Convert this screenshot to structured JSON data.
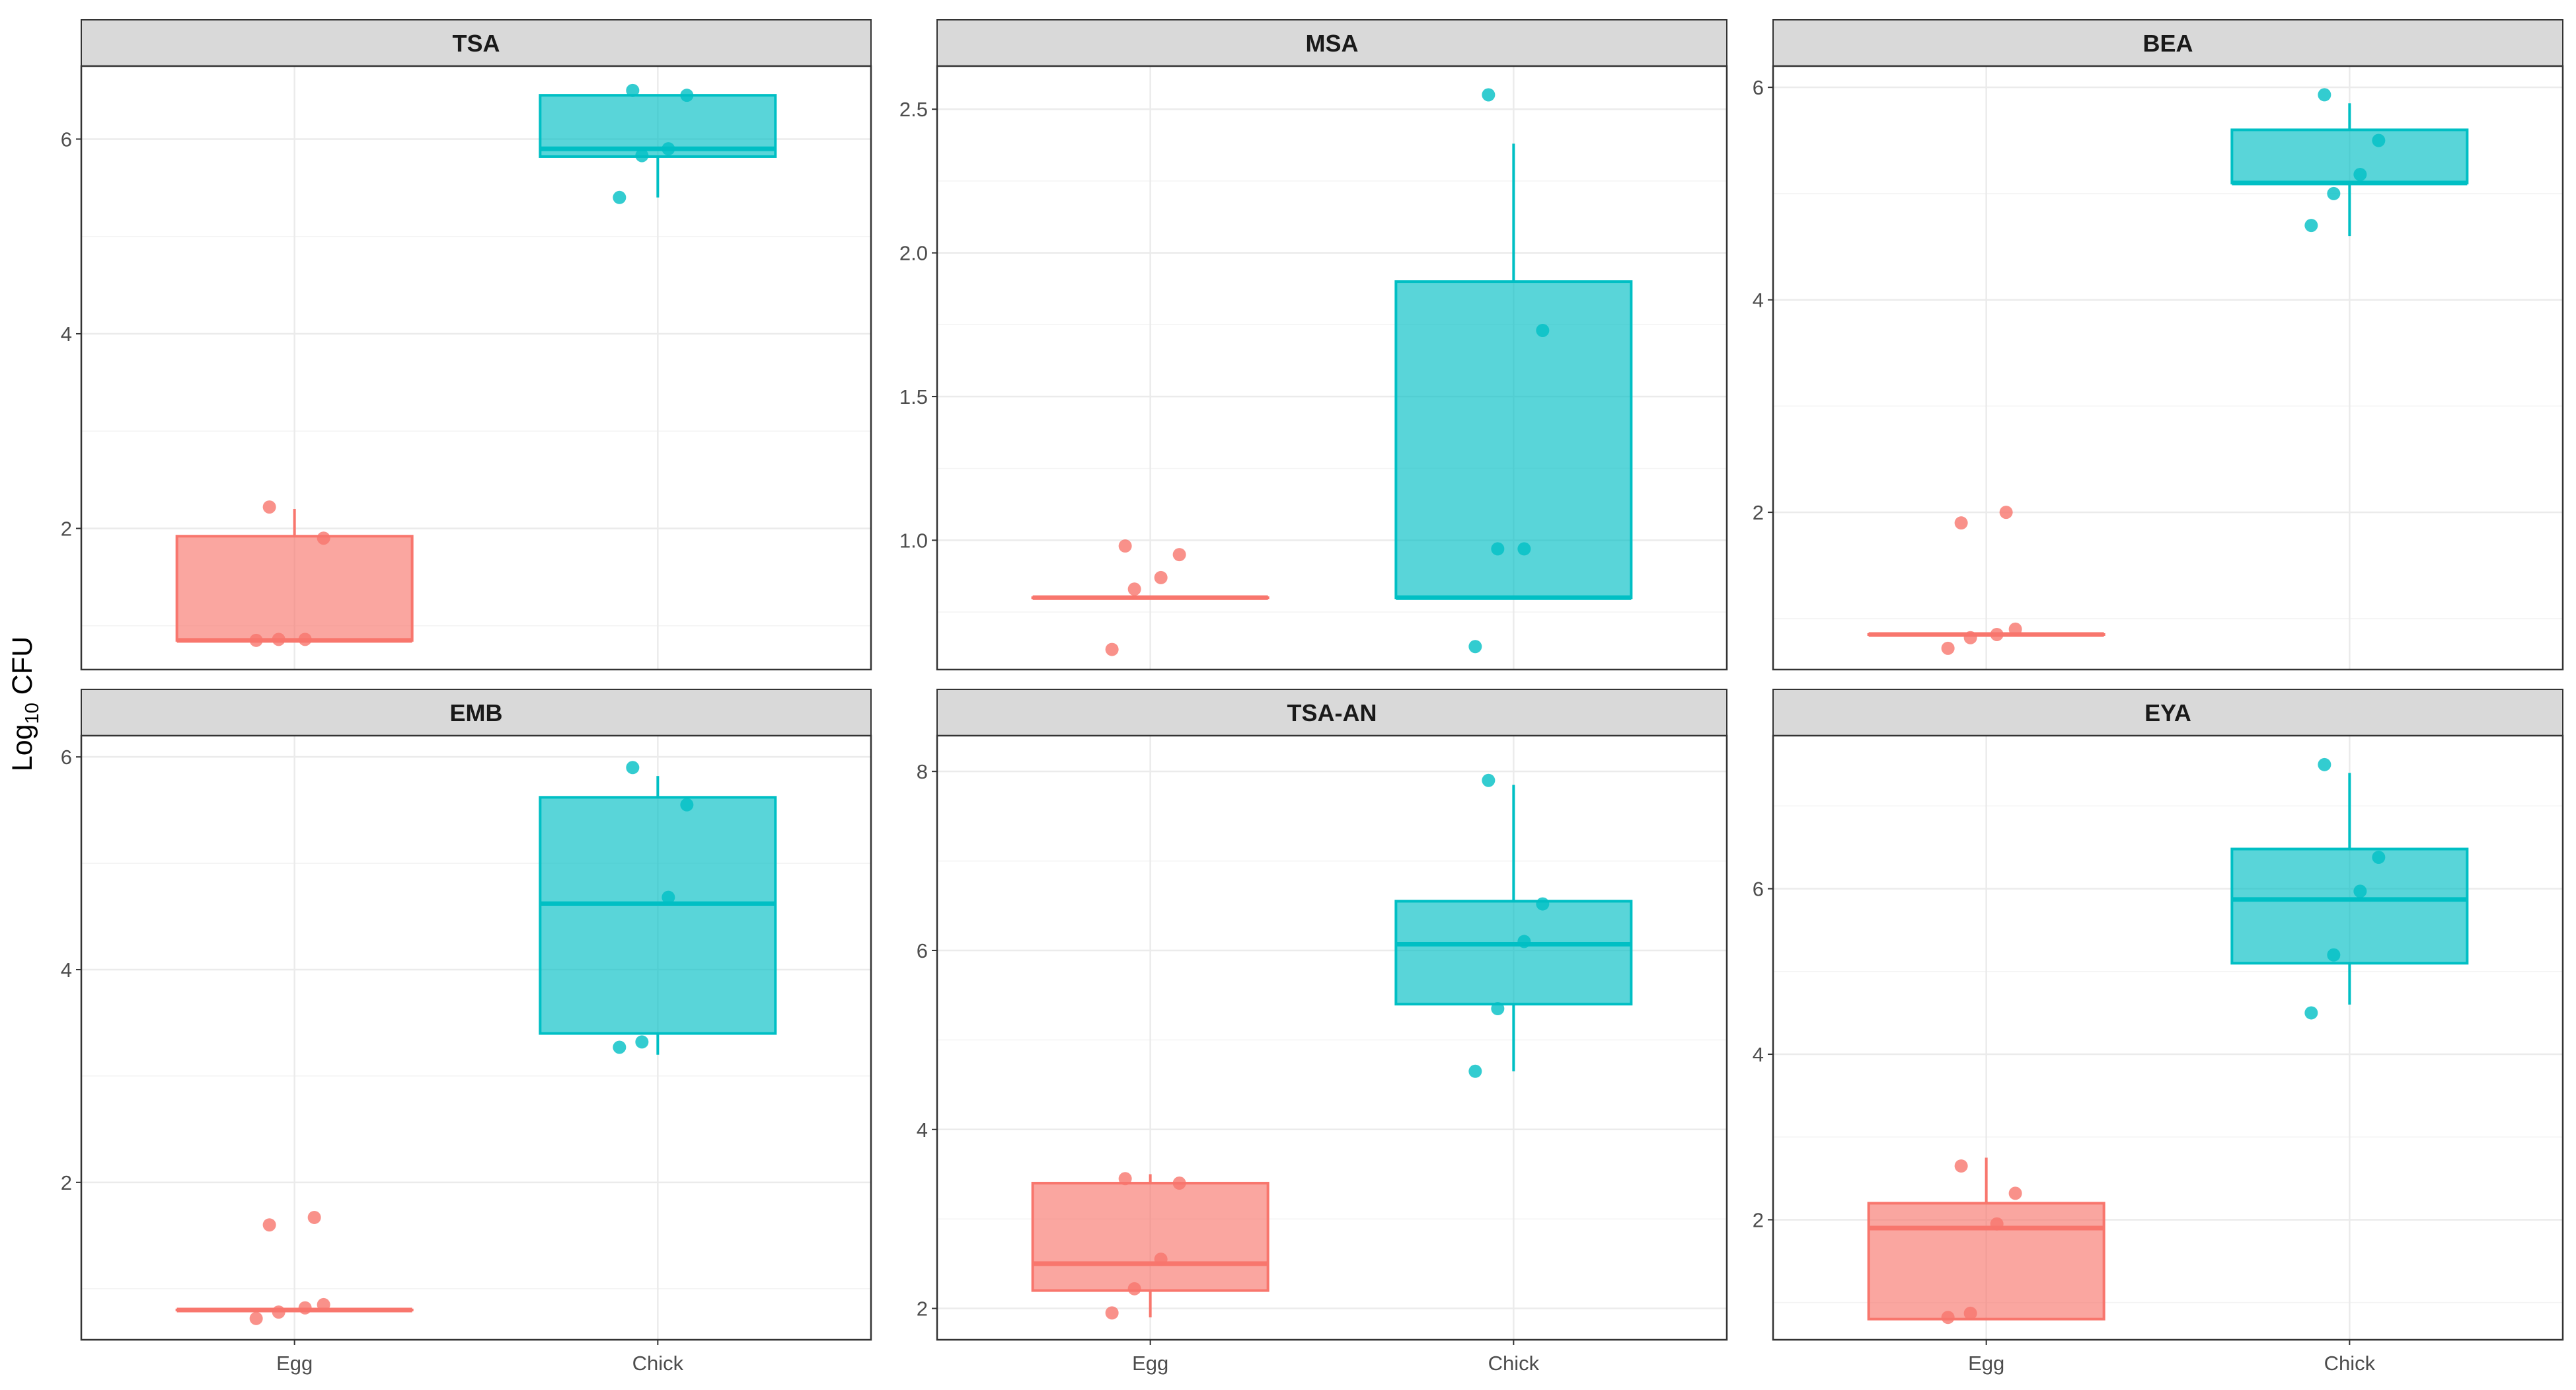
{
  "colors": {
    "egg": "#F8766D",
    "chick": "#00BFC4",
    "strip_fill": "#D9D9D9",
    "panel_border": "#333333",
    "grid_major": "#EBEBEB",
    "grid_minor": "#F3F3F3",
    "tick_text": "#4D4D4D"
  },
  "chart_data": {
    "type": "box",
    "ylabel": "Log10 CFU",
    "ylabel_parts": {
      "base": "Log",
      "subscript": "10",
      "rest": " CFU"
    },
    "categories": [
      "Egg",
      "Chick"
    ],
    "facets": [
      {
        "title": "TSA",
        "ylim": [
          0.55,
          6.75
        ],
        "yticks": [
          2,
          4,
          6
        ],
        "groups": [
          {
            "name": "Egg",
            "whisker_low": 0.85,
            "q1": 0.85,
            "median": 0.85,
            "q3": 1.92,
            "whisker_high": 2.2,
            "points": [
              0.85,
              0.86,
              0.86,
              1.9,
              2.22
            ]
          },
          {
            "name": "Chick",
            "whisker_low": 5.4,
            "q1": 5.82,
            "median": 5.9,
            "q3": 6.45,
            "whisker_high": 6.45,
            "points": [
              5.4,
              5.83,
              5.9,
              6.45,
              6.5
            ]
          }
        ]
      },
      {
        "title": "MSA",
        "ylim": [
          0.55,
          2.65
        ],
        "yticks": [
          1.0,
          1.5,
          2.0,
          2.5
        ],
        "groups": [
          {
            "name": "Egg",
            "whisker_low": 0.8,
            "q1": 0.8,
            "median": 0.8,
            "q3": 0.8,
            "whisker_high": 0.8,
            "points": [
              0.62,
              0.83,
              0.87,
              0.95,
              0.98
            ]
          },
          {
            "name": "Chick",
            "whisker_low": 0.8,
            "q1": 0.8,
            "median": 0.8,
            "q3": 1.9,
            "whisker_high": 2.38,
            "points": [
              0.63,
              0.97,
              0.97,
              1.73,
              2.55
            ]
          }
        ]
      },
      {
        "title": "BEA",
        "ylim": [
          0.52,
          6.2
        ],
        "yticks": [
          2,
          4,
          6
        ],
        "groups": [
          {
            "name": "Egg",
            "whisker_low": 0.85,
            "q1": 0.85,
            "median": 0.85,
            "q3": 0.85,
            "whisker_high": 0.85,
            "points": [
              0.72,
              0.82,
              0.85,
              0.9,
              1.9,
              2.0
            ]
          },
          {
            "name": "Chick",
            "whisker_low": 4.6,
            "q1": 5.1,
            "median": 5.1,
            "q3": 5.6,
            "whisker_high": 5.85,
            "points": [
              4.7,
              5.0,
              5.18,
              5.5,
              5.93
            ]
          }
        ]
      },
      {
        "title": "EMB",
        "ylim": [
          0.52,
          6.2
        ],
        "yticks": [
          2,
          4,
          6
        ],
        "groups": [
          {
            "name": "Egg",
            "whisker_low": 0.8,
            "q1": 0.8,
            "median": 0.8,
            "q3": 0.8,
            "whisker_high": 0.8,
            "points": [
              0.72,
              0.78,
              0.82,
              0.85,
              1.6,
              1.67
            ]
          },
          {
            "name": "Chick",
            "whisker_low": 3.2,
            "q1": 3.4,
            "median": 4.62,
            "q3": 5.62,
            "whisker_high": 5.82,
            "points": [
              3.27,
              3.32,
              4.68,
              5.55,
              5.9
            ]
          }
        ]
      },
      {
        "title": "TSA-AN",
        "ylim": [
          1.65,
          8.4
        ],
        "yticks": [
          2,
          4,
          6,
          8
        ],
        "groups": [
          {
            "name": "Egg",
            "whisker_low": 1.9,
            "q1": 2.2,
            "median": 2.5,
            "q3": 3.4,
            "whisker_high": 3.5,
            "points": [
              1.95,
              2.22,
              2.55,
              3.4,
              3.45
            ]
          },
          {
            "name": "Chick",
            "whisker_low": 4.65,
            "q1": 5.4,
            "median": 6.07,
            "q3": 6.55,
            "whisker_high": 7.85,
            "points": [
              4.65,
              5.35,
              6.1,
              6.52,
              7.9
            ]
          }
        ]
      },
      {
        "title": "EYA",
        "ylim": [
          0.55,
          7.85
        ],
        "yticks": [
          2,
          4,
          6
        ],
        "groups": [
          {
            "name": "Egg",
            "whisker_low": 0.8,
            "q1": 0.8,
            "median": 1.9,
            "q3": 2.2,
            "whisker_high": 2.75,
            "points": [
              0.82,
              0.87,
              1.95,
              2.32,
              2.65
            ]
          },
          {
            "name": "Chick",
            "whisker_low": 4.6,
            "q1": 5.1,
            "median": 5.87,
            "q3": 6.48,
            "whisker_high": 7.4,
            "points": [
              4.5,
              5.2,
              5.97,
              6.38,
              7.5
            ]
          }
        ]
      }
    ]
  }
}
